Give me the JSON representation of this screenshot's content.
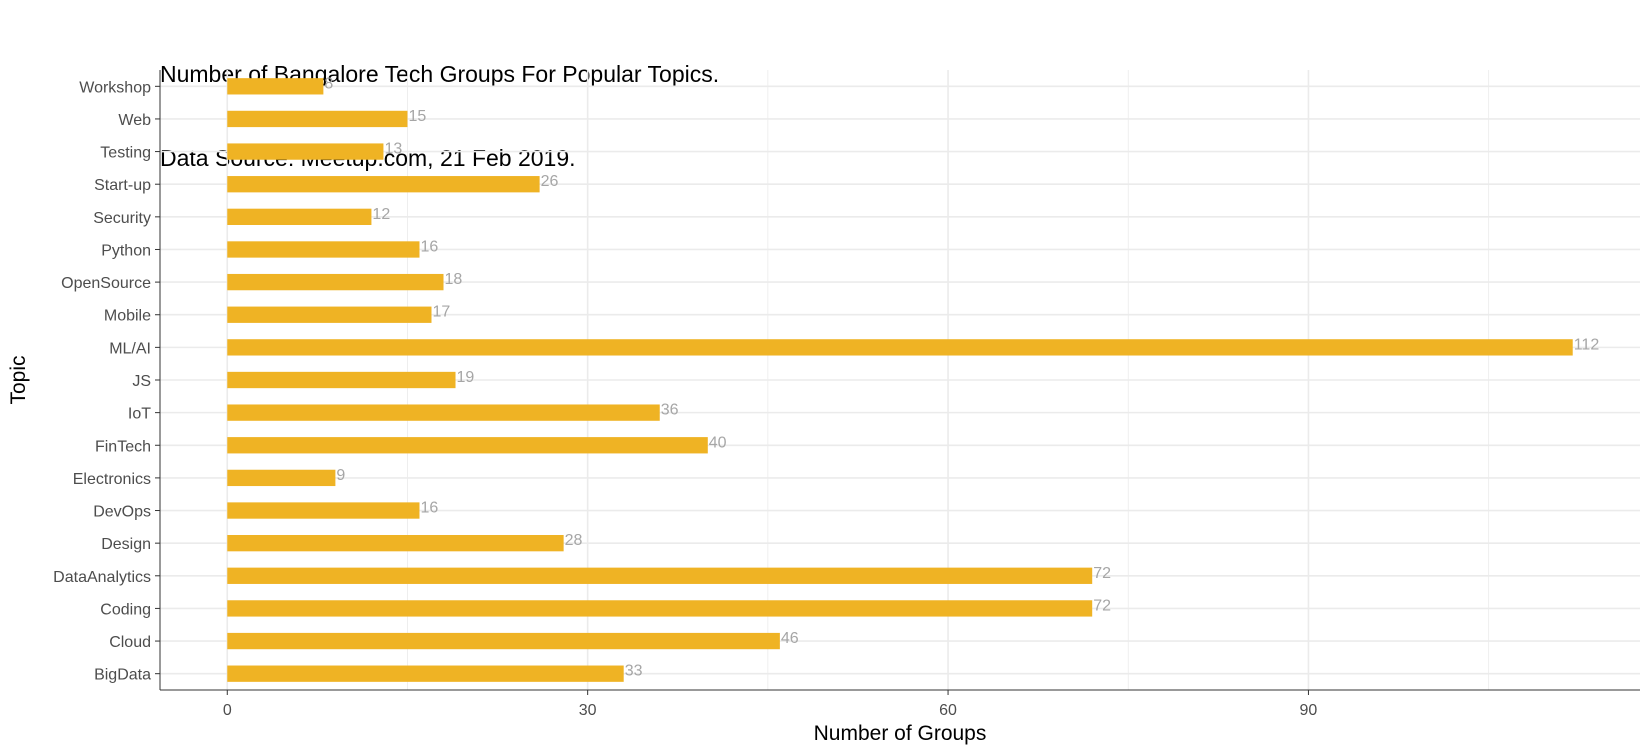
{
  "chart_data": {
    "type": "bar",
    "orientation": "horizontal",
    "title": "Number of Bangalore Tech Groups For Popular Topics.",
    "subtitle": "Data Source: Meetup.com, 21 Feb 2019.",
    "xlabel": "Number of Groups",
    "ylabel": "Topic",
    "categories": [
      "BigData",
      "Cloud",
      "Coding",
      "DataAnalytics",
      "Design",
      "DevOps",
      "Electronics",
      "FinTech",
      "IoT",
      "JS",
      "ML/AI",
      "Mobile",
      "OpenSource",
      "Python",
      "Security",
      "Start-up",
      "Testing",
      "Web",
      "Workshop"
    ],
    "values": [
      33,
      46,
      72,
      72,
      28,
      16,
      9,
      40,
      36,
      19,
      112,
      17,
      18,
      16,
      12,
      26,
      13,
      15,
      8
    ],
    "x_ticks": [
      0,
      30,
      60,
      90
    ],
    "xlim": [
      -5.6,
      117.6
    ],
    "grid": true,
    "data_labels": true,
    "colors": {
      "bar": "#EFB324",
      "label": "#A6A6A6",
      "grid": "#EBEBEB",
      "axis": "#333333",
      "tick_text": "#4D4D4D"
    }
  }
}
